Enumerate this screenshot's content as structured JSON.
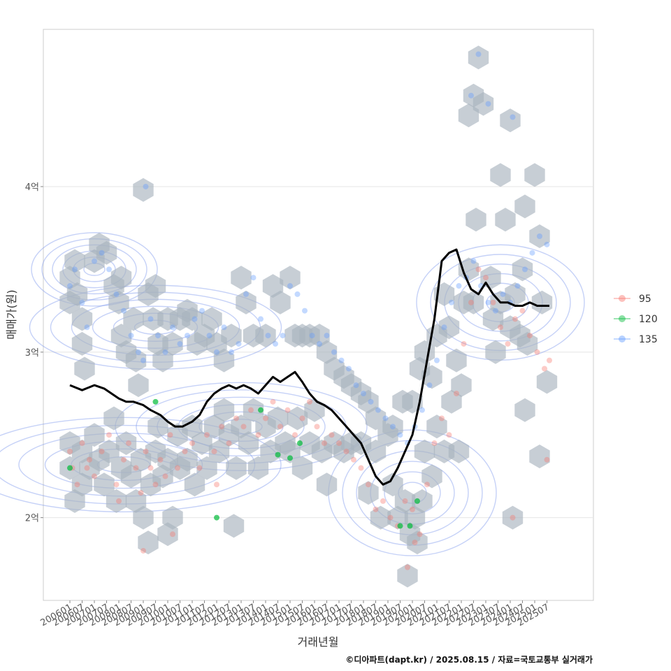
{
  "chart_data": {
    "type": "scatter",
    "title": "",
    "xlabel": "거래년월",
    "ylabel": "매매가(원)",
    "caption": "©디아파트(dapt.kr) / 2025.08.15 / 자료=국토교통부 실거래가",
    "x_ticks": [
      "200601",
      "200607",
      "200701",
      "200707",
      "200801",
      "200807",
      "200901",
      "200907",
      "201001",
      "201007",
      "201101",
      "201107",
      "201201",
      "201207",
      "201301",
      "201307",
      "201401",
      "201407",
      "201501",
      "201507",
      "201601",
      "201607",
      "201701",
      "201707",
      "201801",
      "201807",
      "201901",
      "201907",
      "202001",
      "202007",
      "202101",
      "202107",
      "202201",
      "202207",
      "202301",
      "202307",
      "202401",
      "202407",
      "202501",
      "202507"
    ],
    "y_ticks": [
      {
        "value": 2.0,
        "label": "2억"
      },
      {
        "value": 3.0,
        "label": "3억"
      },
      {
        "value": 4.0,
        "label": "4억"
      }
    ],
    "ylim": [
      1.5,
      4.95
    ],
    "xlim": [
      2005.4,
      2025.9
    ],
    "grid": true,
    "legend_position": "right",
    "series": [
      {
        "name": "95",
        "color": "#F8766D"
      },
      {
        "name": "120",
        "color": "#00BA38"
      },
      {
        "name": "135",
        "color": "#619CFF"
      }
    ],
    "trend_line": {
      "color": "#000000",
      "x": [
        2006.0,
        2006.5,
        2007.0,
        2007.4,
        2007.7,
        2008.0,
        2008.3,
        2008.6,
        2009.0,
        2009.3,
        2009.7,
        2010.0,
        2010.3,
        2010.6,
        2011.0,
        2011.3,
        2011.6,
        2011.9,
        2012.2,
        2012.5,
        2012.8,
        2013.1,
        2013.4,
        2013.7,
        2014.0,
        2014.3,
        2014.6,
        2014.9,
        2015.2,
        2015.5,
        2015.8,
        2016.1,
        2016.4,
        2016.7,
        2017.0,
        2017.3,
        2017.6,
        2017.9,
        2018.2,
        2018.5,
        2018.8,
        2019.1,
        2019.4,
        2019.7,
        2020.0,
        2020.3,
        2020.6,
        2020.9,
        2021.2,
        2021.5,
        2021.8,
        2022.1,
        2022.4,
        2022.7,
        2023.0,
        2023.3,
        2023.6,
        2023.9,
        2024.2,
        2024.5,
        2024.8,
        2025.1,
        2025.4,
        2025.6
      ],
      "y": [
        2.8,
        2.77,
        2.8,
        2.78,
        2.75,
        2.72,
        2.7,
        2.7,
        2.68,
        2.65,
        2.62,
        2.58,
        2.55,
        2.55,
        2.58,
        2.62,
        2.7,
        2.75,
        2.78,
        2.8,
        2.78,
        2.8,
        2.78,
        2.75,
        2.8,
        2.85,
        2.82,
        2.85,
        2.88,
        2.82,
        2.75,
        2.7,
        2.68,
        2.65,
        2.6,
        2.55,
        2.5,
        2.45,
        2.35,
        2.25,
        2.2,
        2.22,
        2.3,
        2.4,
        2.5,
        2.7,
        2.95,
        3.2,
        3.55,
        3.6,
        3.62,
        3.48,
        3.38,
        3.35,
        3.42,
        3.35,
        3.3,
        3.3,
        3.28,
        3.28,
        3.3,
        3.28,
        3.28,
        3.28
      ]
    },
    "hex_bins": [
      [
        2006.0,
        3.3
      ],
      [
        2006.0,
        3.45
      ],
      [
        2006.2,
        3.55
      ],
      [
        2006.3,
        3.35
      ],
      [
        2006.5,
        3.2
      ],
      [
        2006.5,
        3.05
      ],
      [
        2006.6,
        2.9
      ],
      [
        2007.0,
        3.55
      ],
      [
        2007.2,
        3.65
      ],
      [
        2007.5,
        3.6
      ],
      [
        2007.8,
        3.4
      ],
      [
        2008.0,
        3.3
      ],
      [
        2008.1,
        3.45
      ],
      [
        2008.1,
        3.1
      ],
      [
        2008.3,
        3.0
      ],
      [
        2008.6,
        3.2
      ],
      [
        2008.7,
        2.95
      ],
      [
        2008.8,
        2.8
      ],
      [
        2009.0,
        3.98
      ],
      [
        2009.2,
        3.35
      ],
      [
        2009.4,
        3.2
      ],
      [
        2009.6,
        3.05
      ],
      [
        2009.8,
        2.95
      ],
      [
        2009.5,
        3.4
      ],
      [
        2010.0,
        3.2
      ],
      [
        2010.2,
        3.05
      ],
      [
        2010.5,
        3.2
      ],
      [
        2010.8,
        3.25
      ],
      [
        2011.0,
        3.2
      ],
      [
        2011.2,
        3.05
      ],
      [
        2011.5,
        3.1
      ],
      [
        2011.8,
        3.2
      ],
      [
        2012.0,
        3.05
      ],
      [
        2012.3,
        2.95
      ],
      [
        2012.6,
        3.1
      ],
      [
        2013.0,
        3.45
      ],
      [
        2013.2,
        3.3
      ],
      [
        2013.5,
        3.1
      ],
      [
        2014.0,
        3.1
      ],
      [
        2014.3,
        3.4
      ],
      [
        2014.6,
        3.3
      ],
      [
        2015.0,
        3.45
      ],
      [
        2015.2,
        3.1
      ],
      [
        2015.5,
        3.1
      ],
      [
        2015.8,
        3.1
      ],
      [
        2016.2,
        3.1
      ],
      [
        2016.5,
        3.0
      ],
      [
        2016.8,
        2.9
      ],
      [
        2017.2,
        2.85
      ],
      [
        2017.5,
        2.8
      ],
      [
        2017.9,
        2.75
      ],
      [
        2018.2,
        2.7
      ],
      [
        2018.5,
        2.6
      ],
      [
        2006.0,
        2.45
      ],
      [
        2006.0,
        2.3
      ],
      [
        2006.2,
        2.1
      ],
      [
        2006.5,
        2.2
      ],
      [
        2006.5,
        2.4
      ],
      [
        2006.8,
        2.3
      ],
      [
        2007.0,
        2.5
      ],
      [
        2007.2,
        2.35
      ],
      [
        2007.4,
        2.2
      ],
      [
        2007.6,
        2.4
      ],
      [
        2007.8,
        2.6
      ],
      [
        2007.9,
        2.1
      ],
      [
        2008.1,
        2.3
      ],
      [
        2008.3,
        2.45
      ],
      [
        2008.5,
        2.25
      ],
      [
        2008.7,
        2.1
      ],
      [
        2008.9,
        2.35
      ],
      [
        2009.0,
        2.0
      ],
      [
        2009.2,
        1.85
      ],
      [
        2009.3,
        2.2
      ],
      [
        2009.5,
        2.4
      ],
      [
        2009.6,
        2.55
      ],
      [
        2009.8,
        2.25
      ],
      [
        2010.0,
        1.9
      ],
      [
        2010.0,
        2.35
      ],
      [
        2010.2,
        2.0
      ],
      [
        2010.4,
        2.5
      ],
      [
        2010.5,
        2.3
      ],
      [
        2010.8,
        2.35
      ],
      [
        2011.0,
        2.55
      ],
      [
        2011.1,
        2.2
      ],
      [
        2011.4,
        2.45
      ],
      [
        2011.6,
        2.3
      ],
      [
        2011.9,
        2.55
      ],
      [
        2012.1,
        2.4
      ],
      [
        2012.3,
        2.65
      ],
      [
        2012.5,
        2.5
      ],
      [
        2012.7,
        1.95
      ],
      [
        2012.8,
        2.3
      ],
      [
        2013.0,
        2.55
      ],
      [
        2013.3,
        2.45
      ],
      [
        2013.5,
        2.65
      ],
      [
        2013.7,
        2.3
      ],
      [
        2014.0,
        2.55
      ],
      [
        2014.2,
        2.4
      ],
      [
        2014.5,
        2.6
      ],
      [
        2014.8,
        2.45
      ],
      [
        2015.0,
        2.4
      ],
      [
        2015.3,
        2.6
      ],
      [
        2015.5,
        2.3
      ],
      [
        2015.8,
        2.45
      ],
      [
        2016.0,
        2.65
      ],
      [
        2016.3,
        2.4
      ],
      [
        2016.5,
        2.2
      ],
      [
        2016.8,
        2.45
      ],
      [
        2017.2,
        2.4
      ],
      [
        2017.5,
        2.45
      ],
      [
        2017.9,
        2.45
      ],
      [
        2018.2,
        2.15
      ],
      [
        2018.5,
        2.4
      ],
      [
        2018.7,
        2.0
      ],
      [
        2019.0,
        2.5
      ],
      [
        2019.2,
        2.2
      ],
      [
        2019.4,
        2.0
      ],
      [
        2019.7,
        2.1
      ],
      [
        2019.8,
        1.65
      ],
      [
        2019.9,
        1.9
      ],
      [
        2020.1,
        2.0
      ],
      [
        2020.2,
        1.85
      ],
      [
        2020.4,
        2.1
      ],
      [
        2020.5,
        2.4
      ],
      [
        2020.8,
        2.25
      ],
      [
        2019.2,
        2.55
      ],
      [
        2019.6,
        2.7
      ],
      [
        2020.0,
        2.7
      ],
      [
        2020.3,
        2.9
      ],
      [
        2020.5,
        3.0
      ],
      [
        2020.8,
        2.85
      ],
      [
        2021.0,
        2.55
      ],
      [
        2021.0,
        3.1
      ],
      [
        2021.3,
        3.35
      ],
      [
        2021.3,
        2.4
      ],
      [
        2021.5,
        3.15
      ],
      [
        2021.6,
        2.7
      ],
      [
        2021.8,
        2.95
      ],
      [
        2021.9,
        2.4
      ],
      [
        2022.0,
        2.8
      ],
      [
        2022.1,
        3.3
      ],
      [
        2022.3,
        3.5
      ],
      [
        2022.5,
        3.3
      ],
      [
        2022.6,
        3.8
      ],
      [
        2022.3,
        4.43
      ],
      [
        2022.5,
        4.55
      ],
      [
        2022.9,
        4.5
      ],
      [
        2022.7,
        4.78
      ],
      [
        2023.2,
        3.45
      ],
      [
        2023.3,
        3.2
      ],
      [
        2023.4,
        3.0
      ],
      [
        2023.6,
        3.3
      ],
      [
        2023.6,
        4.07
      ],
      [
        2023.8,
        3.8
      ],
      [
        2024.0,
        3.15
      ],
      [
        2024.0,
        4.4
      ],
      [
        2024.2,
        3.35
      ],
      [
        2024.4,
        3.1
      ],
      [
        2024.5,
        3.5
      ],
      [
        2024.6,
        3.88
      ],
      [
        2024.6,
        2.65
      ],
      [
        2024.7,
        3.05
      ],
      [
        2025.2,
        3.7
      ],
      [
        2025.0,
        4.07
      ],
      [
        2025.3,
        3.3
      ],
      [
        2025.5,
        2.82
      ],
      [
        2025.2,
        2.37
      ],
      [
        2024.1,
        2.0
      ]
    ],
    "points": [
      {
        "series": "95",
        "x": [
          2006.0,
          2006.1,
          2006.3,
          2006.5,
          2006.8,
          2007.0,
          2007.3,
          2007.6,
          2007.9,
          2008.2,
          2008.4,
          2008.7,
          2008.9,
          2009.1,
          2009.3,
          2009.5,
          2009.7,
          2009.9,
          2010.1,
          2010.4,
          2010.7,
          2011.0,
          2011.3,
          2011.6,
          2011.9,
          2012.2,
          2012.5,
          2012.8,
          2013.1,
          2013.4,
          2013.7,
          2014.0,
          2014.3,
          2014.6,
          2014.9,
          2015.2,
          2015.5,
          2015.8,
          2016.1,
          2016.4,
          2016.7,
          2017.0,
          2017.3,
          2017.6,
          2017.9,
          2018.2,
          2018.5,
          2018.8,
          2019.1,
          2019.4,
          2019.7,
          2020.0,
          2020.3,
          2020.6,
          2020.9,
          2021.2,
          2021.5,
          2021.8,
          2022.1,
          2022.4,
          2022.7,
          2023.0,
          2023.3,
          2023.6,
          2023.9,
          2024.2,
          2024.5,
          2024.8,
          2025.1,
          2025.4,
          2025.6,
          2009.0,
          2010.2,
          2012.0,
          2008.0,
          2006.7,
          2019.8,
          2020.1,
          2024.1,
          2025.5
        ],
        "y": [
          2.4,
          2.3,
          2.2,
          2.45,
          2.35,
          2.25,
          2.4,
          2.5,
          2.2,
          2.35,
          2.45,
          2.3,
          2.15,
          2.4,
          2.3,
          2.2,
          2.35,
          2.25,
          2.5,
          2.3,
          2.4,
          2.45,
          2.3,
          2.5,
          2.4,
          2.55,
          2.45,
          2.6,
          2.55,
          2.65,
          2.5,
          2.6,
          2.7,
          2.55,
          2.65,
          2.5,
          2.6,
          2.7,
          2.55,
          2.45,
          2.5,
          2.45,
          2.4,
          2.35,
          2.3,
          2.2,
          2.05,
          2.1,
          2.0,
          1.95,
          2.1,
          2.05,
          1.9,
          2.2,
          2.45,
          2.6,
          2.5,
          2.75,
          3.05,
          3.3,
          3.5,
          3.45,
          3.3,
          3.15,
          3.05,
          3.2,
          3.25,
          3.1,
          3.0,
          2.9,
          2.95,
          1.8,
          1.9,
          2.2,
          2.1,
          2.3,
          1.7,
          1.85,
          2.0,
          2.35
        ]
      },
      {
        "series": "120",
        "x": [
          2006.0,
          2009.5,
          2012.0,
          2013.8,
          2014.5,
          2015.0,
          2015.4,
          2019.5,
          2019.9,
          2020.2
        ],
        "y": [
          2.3,
          2.7,
          2.0,
          2.65,
          2.38,
          2.36,
          2.45,
          1.95,
          1.95,
          2.1
        ]
      },
      {
        "series": "135",
        "x": [
          2006.0,
          2006.2,
          2006.5,
          2006.7,
          2007.0,
          2007.3,
          2007.6,
          2007.9,
          2008.2,
          2008.5,
          2008.8,
          2009.0,
          2009.3,
          2009.6,
          2009.9,
          2010.2,
          2010.5,
          2010.8,
          2011.1,
          2011.4,
          2011.7,
          2012.0,
          2012.3,
          2012.6,
          2012.9,
          2013.2,
          2013.5,
          2013.8,
          2014.1,
          2014.4,
          2014.7,
          2015.0,
          2015.3,
          2015.6,
          2015.9,
          2016.2,
          2016.5,
          2016.8,
          2017.1,
          2017.4,
          2017.7,
          2018.0,
          2018.3,
          2018.6,
          2018.9,
          2019.2,
          2019.5,
          2019.8,
          2020.1,
          2020.4,
          2020.7,
          2021.0,
          2021.3,
          2021.6,
          2021.9,
          2022.2,
          2022.5,
          2022.8,
          2023.1,
          2023.4,
          2023.7,
          2024.0,
          2024.3,
          2024.6,
          2024.9,
          2025.2,
          2025.5,
          2022.7,
          2022.4,
          2023.1,
          2009.1,
          2024.1
        ],
        "y": [
          3.4,
          3.5,
          3.3,
          3.15,
          3.55,
          3.6,
          3.5,
          3.35,
          3.25,
          3.1,
          3.0,
          2.95,
          3.2,
          3.1,
          3.0,
          3.15,
          3.05,
          3.1,
          3.2,
          3.25,
          3.1,
          3.0,
          3.15,
          3.0,
          3.05,
          3.35,
          3.45,
          3.2,
          3.1,
          3.05,
          3.1,
          3.4,
          3.35,
          3.25,
          3.1,
          3.05,
          3.1,
          3.0,
          2.95,
          2.9,
          2.8,
          2.75,
          2.7,
          2.65,
          2.6,
          2.55,
          2.5,
          2.45,
          2.55,
          2.65,
          2.8,
          2.95,
          3.15,
          3.3,
          3.4,
          3.45,
          3.55,
          3.4,
          3.3,
          3.25,
          3.35,
          3.3,
          3.4,
          3.5,
          3.6,
          3.7,
          3.65,
          4.8,
          4.55,
          4.5,
          4.0,
          4.42
        ]
      }
    ]
  }
}
